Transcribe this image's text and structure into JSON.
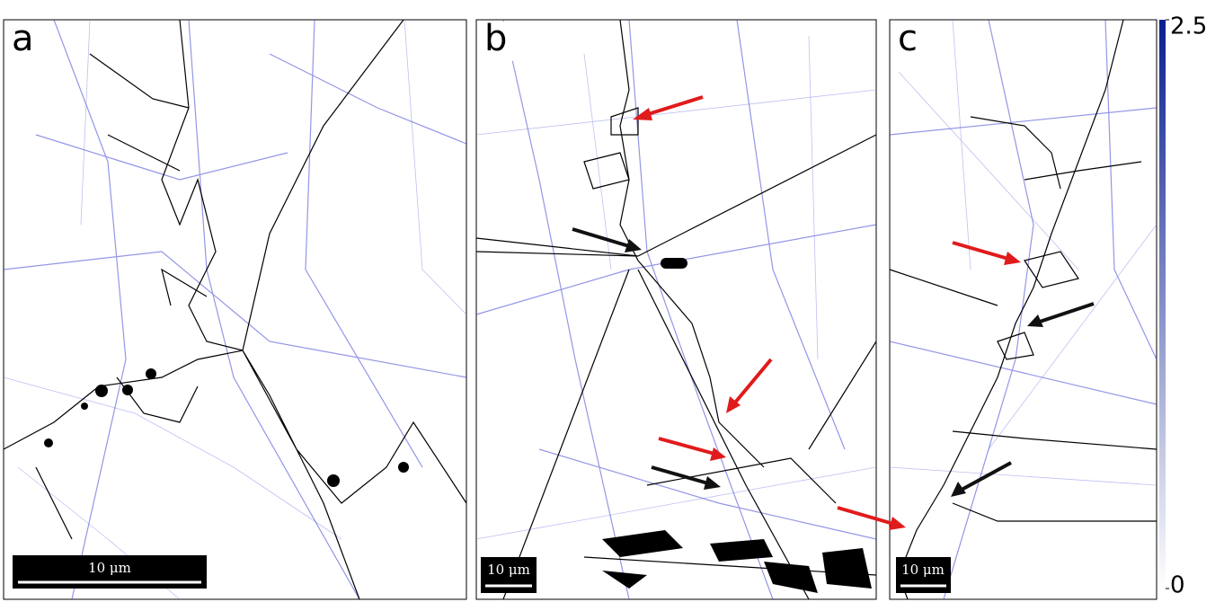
{
  "panels": [
    {
      "label": "a",
      "scale_bar": "10 μm"
    },
    {
      "label": "b",
      "scale_bar": "10 μm"
    },
    {
      "label": "c",
      "scale_bar": "10 μm"
    }
  ],
  "colorbar": {
    "range": [
      0,
      2.5
    ],
    "ticks": [
      0,
      2.5
    ]
  }
}
